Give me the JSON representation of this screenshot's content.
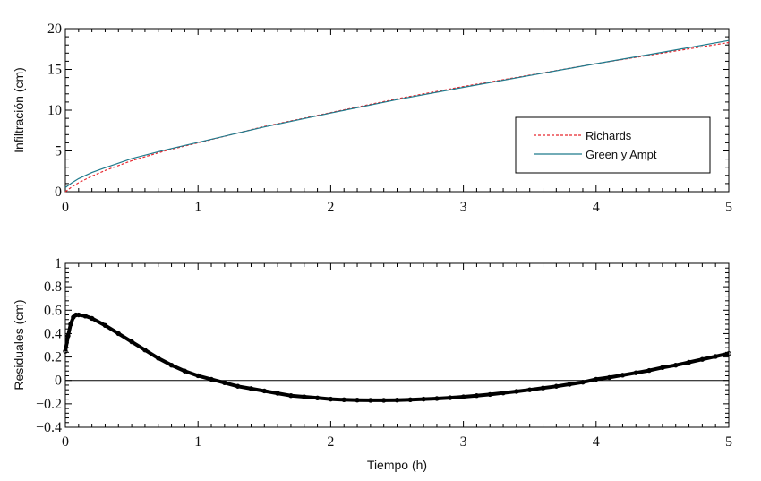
{
  "colors": {
    "richards": "#e8272f",
    "green_ampt": "#1f7a8c",
    "residual": "#000000",
    "frame": "#000000"
  },
  "chart_data": [
    {
      "type": "line",
      "xlabel": "",
      "ylabel": "Infiltración (cm)",
      "xlim": [
        0,
        5
      ],
      "ylim": [
        0,
        20
      ],
      "xticks": [
        0,
        1,
        2,
        3,
        4,
        5
      ],
      "xtick_labels": [
        "0",
        "1",
        "2",
        "3",
        "4",
        "5"
      ],
      "yticks": [
        0,
        5,
        10,
        15,
        20
      ],
      "ytick_labels": [
        "0",
        "5",
        "10",
        "15",
        "20"
      ],
      "grid": false,
      "legend_position": "right",
      "series": [
        {
          "name": "Richards",
          "style": "dashed",
          "x": [
            0,
            0.05,
            0.1,
            0.2,
            0.3,
            0.5,
            0.75,
            1,
            1.5,
            2,
            2.5,
            3,
            3.5,
            4,
            4.5,
            5
          ],
          "y": [
            0,
            0.6,
            1.1,
            1.9,
            2.6,
            3.8,
            5.0,
            6.0,
            8.0,
            9.7,
            11.4,
            12.9,
            14.3,
            15.7,
            17.0,
            18.3
          ]
        },
        {
          "name": "Green y Ampt",
          "style": "solid",
          "x": [
            0,
            0.05,
            0.1,
            0.2,
            0.3,
            0.5,
            0.75,
            1,
            1.5,
            2,
            2.5,
            3,
            3.5,
            4,
            4.5,
            5
          ],
          "y": [
            0.5,
            1.1,
            1.6,
            2.35,
            2.95,
            4.05,
            5.1,
            6.05,
            7.95,
            9.65,
            11.3,
            12.8,
            14.25,
            15.7,
            17.1,
            18.55
          ]
        }
      ]
    },
    {
      "type": "scatter",
      "xlabel": "Tiempo (h)",
      "ylabel": "Residuales (cm)",
      "xlim": [
        0,
        5
      ],
      "ylim": [
        -0.4,
        1
      ],
      "xticks": [
        0,
        1,
        2,
        3,
        4,
        5
      ],
      "xtick_labels": [
        "0",
        "1",
        "2",
        "3",
        "4",
        "5"
      ],
      "yticks": [
        -0.4,
        -0.2,
        0,
        0.2,
        0.4,
        0.6,
        0.8,
        1
      ],
      "ytick_labels": [
        "−0.4",
        "−0.2",
        "0",
        "0.2",
        "0.4",
        "0.6",
        "0.8",
        "1"
      ],
      "grid": false,
      "reference_line_y": 0,
      "series": [
        {
          "name": "",
          "x": [
            0,
            0.02,
            0.04,
            0.06,
            0.08,
            0.1,
            0.15,
            0.2,
            0.3,
            0.4,
            0.5,
            0.6,
            0.7,
            0.8,
            0.9,
            1.0,
            1.1,
            1.2,
            1.3,
            1.4,
            1.5,
            1.6,
            1.7,
            1.8,
            1.9,
            2.0,
            2.1,
            2.2,
            2.3,
            2.4,
            2.5,
            2.6,
            2.7,
            2.8,
            2.9,
            3.0,
            3.1,
            3.2,
            3.3,
            3.4,
            3.5,
            3.6,
            3.7,
            3.8,
            3.9,
            4.0,
            4.1,
            4.2,
            4.3,
            4.4,
            4.5,
            4.6,
            4.7,
            4.8,
            4.9,
            5.0
          ],
          "y": [
            0.25,
            0.38,
            0.48,
            0.54,
            0.56,
            0.56,
            0.55,
            0.53,
            0.47,
            0.4,
            0.33,
            0.26,
            0.19,
            0.13,
            0.08,
            0.04,
            0.01,
            -0.02,
            -0.05,
            -0.07,
            -0.09,
            -0.11,
            -0.13,
            -0.14,
            -0.15,
            -0.16,
            -0.165,
            -0.168,
            -0.17,
            -0.17,
            -0.168,
            -0.165,
            -0.16,
            -0.155,
            -0.148,
            -0.14,
            -0.13,
            -0.12,
            -0.107,
            -0.094,
            -0.08,
            -0.065,
            -0.05,
            -0.033,
            -0.015,
            0.01,
            0.025,
            0.045,
            0.065,
            0.085,
            0.11,
            0.13,
            0.155,
            0.18,
            0.205,
            0.23
          ]
        }
      ]
    }
  ]
}
